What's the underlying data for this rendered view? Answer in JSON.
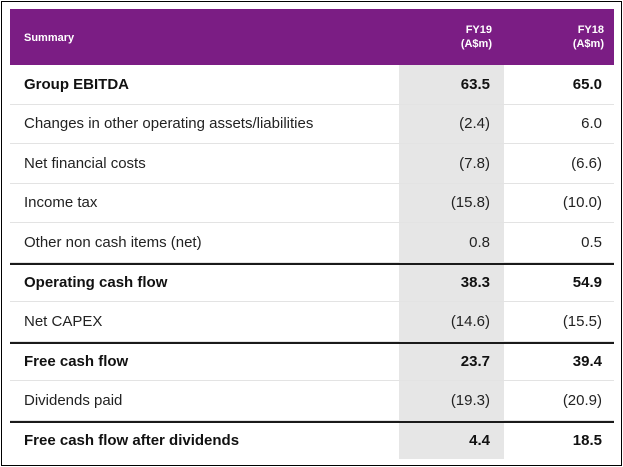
{
  "table": {
    "header": {
      "label": "Summary",
      "fy19": [
        "FY19",
        "(A$m)"
      ],
      "fy18": [
        "FY18",
        "(A$m)"
      ]
    },
    "rows": [
      {
        "label": "Group EBITDA",
        "fy19": "63.5",
        "fy18": "65.0",
        "bold": true
      },
      {
        "label": "Changes in other operating assets/liabilities",
        "fy19": "(2.4)",
        "fy18": "6.0",
        "bold": false
      },
      {
        "label": "Net financial costs",
        "fy19": "(7.8)",
        "fy18": "(6.6)",
        "bold": false
      },
      {
        "label": "Income tax",
        "fy19": "(15.8)",
        "fy18": "(10.0)",
        "bold": false
      },
      {
        "label": "Other non cash items (net)",
        "fy19": "0.8",
        "fy18": "0.5",
        "bold": false
      },
      {
        "label": "Operating cash flow",
        "fy19": "38.3",
        "fy18": "54.9",
        "bold": true
      },
      {
        "label": "Net CAPEX",
        "fy19": "(14.6)",
        "fy18": "(15.5)",
        "bold": false
      },
      {
        "label": "Free cash flow",
        "fy19": "23.7",
        "fy18": "39.4",
        "bold": true
      },
      {
        "label": "Dividends paid",
        "fy19": "(19.3)",
        "fy18": "(20.9)",
        "bold": false
      },
      {
        "label": "Free cash flow after dividends",
        "fy19": "4.4",
        "fy18": "18.5",
        "bold": true
      }
    ]
  },
  "colors": {
    "header_background": "#7b1d84",
    "header_text": "#ffffff",
    "highlight_column": "#e6e6e6",
    "rule": "#1a1a1a"
  }
}
